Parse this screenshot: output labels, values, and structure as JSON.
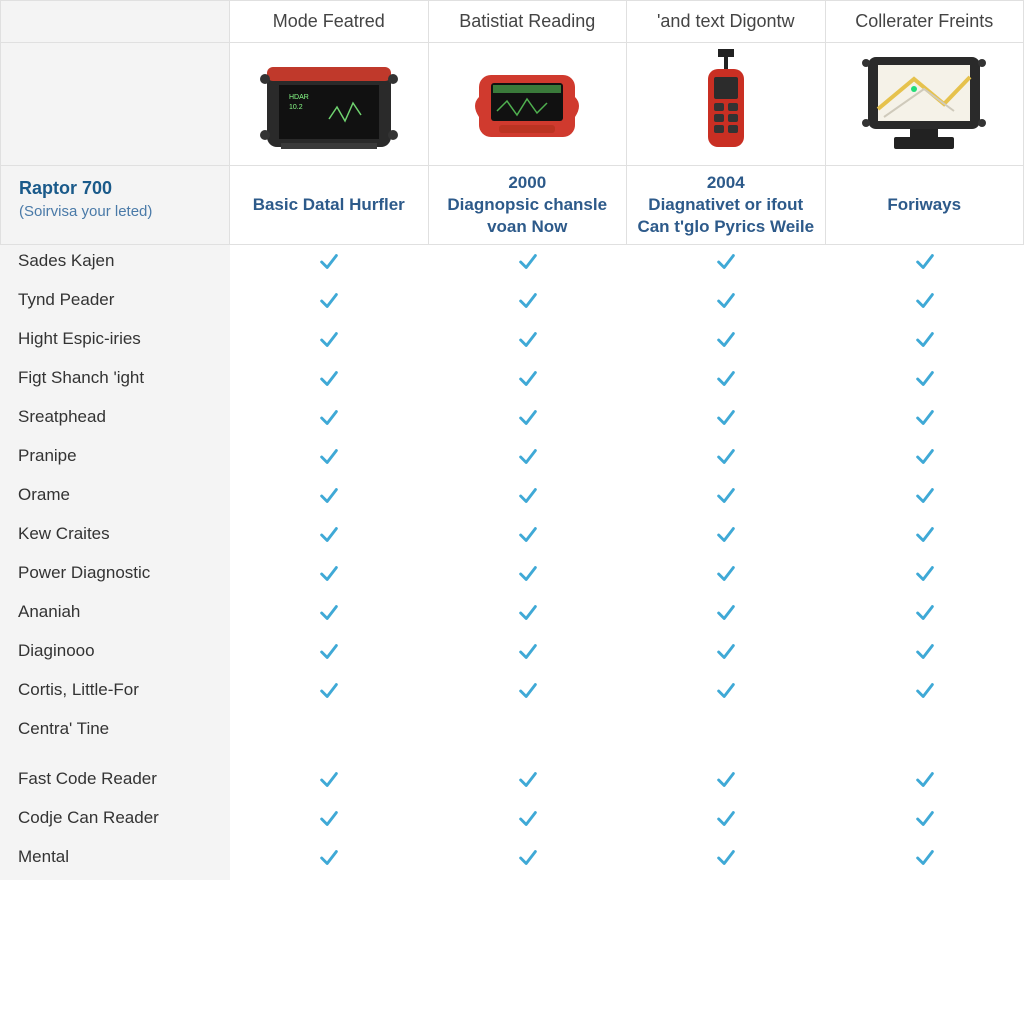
{
  "colors": {
    "border": "#e0e0e0",
    "label_bg": "#f4f4f4",
    "heading_text": "#444444",
    "product_title": "#1a5a8a",
    "product_sub": "#4a7aa8",
    "subtitle": "#2d5a8a",
    "feature_text": "#333333",
    "check": "#3fa9d6"
  },
  "headers": [
    "Mode Featred",
    "Batistiat Reading",
    "'and text Digontw",
    "Collerater Freints"
  ],
  "product": {
    "title": "Raptor 700",
    "subtitle": "(Soirvisa your leted)"
  },
  "column_subtitles": [
    "Basic Datal Hurfler",
    "2000\nDiagnopsic chansle voan Now",
    "2004\nDiagnativet or ifout Can t'glo Pyrics Weile",
    "Foriways"
  ],
  "sections": [
    {
      "gap": false,
      "rows": [
        {
          "label": "Sades Kajen",
          "checks": [
            true,
            true,
            true,
            true
          ]
        },
        {
          "label": "Tynd Peader",
          "checks": [
            true,
            true,
            true,
            true
          ]
        },
        {
          "label": "Hight Espic-iries",
          "checks": [
            true,
            true,
            true,
            true
          ]
        },
        {
          "label": "Figt Shanch 'ight",
          "checks": [
            true,
            true,
            true,
            true
          ]
        },
        {
          "label": "Sreatphead",
          "checks": [
            true,
            true,
            true,
            true
          ]
        },
        {
          "label": "Pranipe",
          "checks": [
            true,
            true,
            true,
            true
          ]
        },
        {
          "label": "Orame",
          "checks": [
            true,
            true,
            true,
            true
          ]
        },
        {
          "label": "Kew Craites",
          "checks": [
            true,
            true,
            true,
            true
          ]
        },
        {
          "label": "Power Diagnostic",
          "checks": [
            true,
            true,
            true,
            true
          ]
        },
        {
          "label": "Ananiah",
          "checks": [
            true,
            true,
            true,
            true
          ]
        },
        {
          "label": "Diaginooo",
          "checks": [
            true,
            true,
            true,
            true
          ]
        },
        {
          "label": "Cortis, Little-For",
          "checks": [
            true,
            true,
            true,
            true
          ]
        },
        {
          "label": "Centra' Tine",
          "checks": [
            false,
            false,
            false,
            false
          ]
        }
      ]
    },
    {
      "gap": true,
      "rows": [
        {
          "label": "Fast Code Reader",
          "checks": [
            true,
            true,
            true,
            true
          ]
        },
        {
          "label": "Codje Can Reader",
          "checks": [
            true,
            true,
            true,
            true
          ]
        },
        {
          "label": "Mental",
          "checks": [
            true,
            true,
            true,
            true
          ]
        }
      ]
    }
  ],
  "product_icons": [
    {
      "type": "rugged-tablet-dark",
      "body": "#2a2a2a",
      "accent": "#c0392b",
      "screen": "#1a1a1a",
      "graph": "#6fd36f"
    },
    {
      "type": "handheld-red",
      "body": "#d03a2e",
      "screen": "#1a1a1a",
      "graph": "#4fb04f"
    },
    {
      "type": "scanner-red",
      "body": "#c92f23",
      "screen": "#2c2c2c",
      "cable": "#222222"
    },
    {
      "type": "rugged-tablet-map",
      "body": "#2a2a2a",
      "screen": "#f5f2e8",
      "road": "#e6c24d",
      "stand": "#222222"
    }
  ]
}
